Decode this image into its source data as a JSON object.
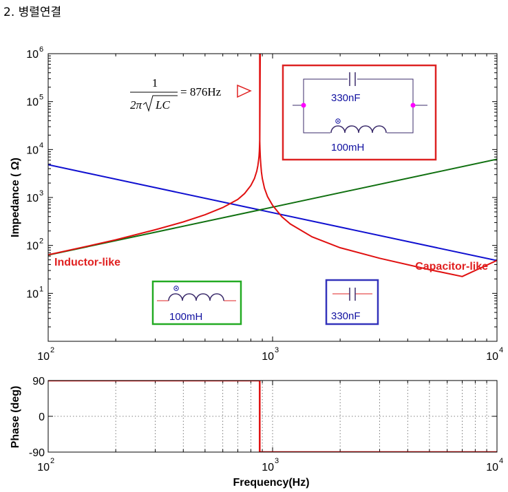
{
  "page": {
    "title": "2. 병렬연결"
  },
  "colors": {
    "lc": "#e01010",
    "capacitor": "#1010d0",
    "inductor": "#107010",
    "box_red": "#dd2222",
    "box_green": "#22aa22",
    "box_blue": "#3333bb",
    "node": "#ff00ff",
    "inset_text": "#1010a0"
  },
  "annotations": {
    "resonance_formula_num": "1",
    "resonance_formula_den_prefix": "2π",
    "resonance_formula_den_rad": "LC",
    "resonance_value": "= 876Hz",
    "inductor_like": "Inductor-like",
    "capacitor_like": "Capacitor-like",
    "parallel_cap_label": "330nF",
    "parallel_ind_label": "100mH",
    "inductor_box_label": "100mH",
    "capacitor_box_label": "330nF"
  },
  "chart_data": [
    {
      "type": "line",
      "xlabel": "",
      "ylabel": "Impedance ( Ω)",
      "x_scale": "log",
      "y_scale": "log",
      "xlim": [
        100,
        10000
      ],
      "ylim": [
        1,
        1000000
      ],
      "x_ticks": [
        {
          "base": "10",
          "exp": "2",
          "value": 100
        },
        {
          "base": "10",
          "exp": "3",
          "value": 1000
        },
        {
          "base": "10",
          "exp": "4",
          "value": 10000
        }
      ],
      "y_ticks": [
        {
          "base": "10",
          "exp": "1",
          "value": 10
        },
        {
          "base": "10",
          "exp": "2",
          "value": 100
        },
        {
          "base": "10",
          "exp": "3",
          "value": 1000
        },
        {
          "base": "10",
          "exp": "4",
          "value": 10000
        },
        {
          "base": "10",
          "exp": "5",
          "value": 100000
        },
        {
          "base": "10",
          "exp": "6",
          "value": 1000000
        }
      ],
      "grid": false,
      "resonance_hz": 876,
      "series": [
        {
          "key": "capacitor",
          "x": [
            100,
            10000
          ],
          "y": [
            4823,
            48.2
          ]
        },
        {
          "key": "inductor",
          "x": [
            100,
            10000
          ],
          "y": [
            62.8,
            6283
          ]
        },
        {
          "key": "parallel_lc",
          "x": [
            100,
            150,
            200,
            300,
            400,
            500,
            600,
            700,
            750,
            800,
            830,
            850,
            860,
            866,
            870,
            873,
            875,
            876,
            877,
            879,
            882,
            886,
            892,
            900,
            920,
            950,
            1000,
            1100,
            1200,
            1500,
            2000,
            3000,
            5000,
            7000,
            10000
          ],
          "y": [
            63.7,
            96.6,
            131,
            212,
            309,
            436,
            617,
            912,
            1206,
            1776,
            2485,
            3530,
            4600,
            5900,
            7200,
            9500,
            12800,
            16000,
            14800,
            10300,
            6900,
            4800,
            3400,
            2480,
            1560,
            1040,
            685,
            396,
            280,
            151,
            89.5,
            54,
            31.2,
            22.5,
            48.7
          ]
        }
      ]
    },
    {
      "type": "line",
      "xlabel": "Frequency(Hz)",
      "ylabel": "Phase (deg)",
      "x_scale": "log",
      "xlim": [
        100,
        10000
      ],
      "ylim": [
        -90,
        90
      ],
      "x_ticks": [
        {
          "base": "10",
          "exp": "2",
          "value": 100
        },
        {
          "base": "10",
          "exp": "3",
          "value": 1000
        },
        {
          "base": "10",
          "exp": "4",
          "value": 10000
        }
      ],
      "y_ticks": [
        {
          "label": "90",
          "value": 90
        },
        {
          "label": "0",
          "value": 0
        },
        {
          "label": "-90",
          "value": -90
        }
      ],
      "grid": true,
      "series": [
        {
          "key": "phase",
          "x": [
            100,
            876,
            876,
            10000
          ],
          "y": [
            90,
            90,
            -90,
            -90
          ]
        }
      ]
    }
  ]
}
